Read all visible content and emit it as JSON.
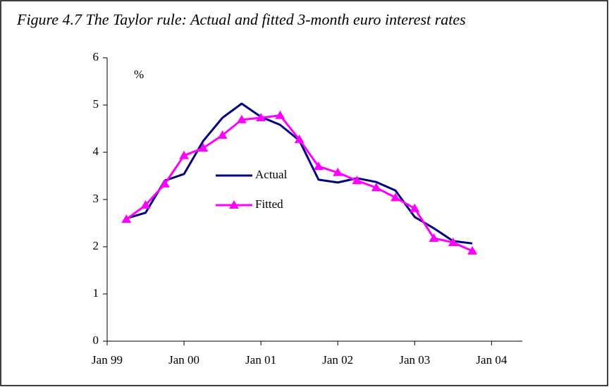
{
  "chart_data": {
    "type": "line",
    "title": "Figure 4.7 The Taylor rule: Actual and fitted 3-month euro interest rates",
    "ylabel": "%",
    "x": [
      1999.25,
      1999.5,
      1999.75,
      2000.0,
      2000.25,
      2000.5,
      2000.75,
      2001.0,
      2001.25,
      2001.5,
      2001.75,
      2002.0,
      2002.25,
      2002.5,
      2002.75,
      2003.0,
      2003.25,
      2003.5,
      2003.75
    ],
    "series": [
      {
        "name": "Actual",
        "color": "#000080",
        "values": [
          2.6,
          2.72,
          3.4,
          3.54,
          4.24,
          4.73,
          5.03,
          4.75,
          4.58,
          4.25,
          3.42,
          3.36,
          3.45,
          3.37,
          3.19,
          2.63,
          2.39,
          2.12,
          2.07
        ]
      },
      {
        "name": "Fitted",
        "color": "#ff00ff",
        "marker": "triangle",
        "values": [
          2.58,
          2.88,
          3.33,
          3.93,
          4.09,
          4.36,
          4.69,
          4.73,
          4.78,
          4.27,
          3.7,
          3.57,
          3.4,
          3.25,
          3.04,
          2.81,
          2.18,
          2.09,
          1.91
        ]
      }
    ],
    "xlim": [
      1999,
      2004.4
    ],
    "xticks": [
      {
        "value": 1999,
        "label": "Jan 99"
      },
      {
        "value": 2000,
        "label": "Jan 00"
      },
      {
        "value": 2001,
        "label": "Jan 01"
      },
      {
        "value": 2002,
        "label": "Jan 02"
      },
      {
        "value": 2003,
        "label": "Jan 03"
      },
      {
        "value": 2004,
        "label": "Jan 04"
      }
    ],
    "ylim": [
      0,
      6
    ],
    "yticks": [
      0,
      1,
      2,
      3,
      4,
      5,
      6
    ],
    "grid": false
  }
}
